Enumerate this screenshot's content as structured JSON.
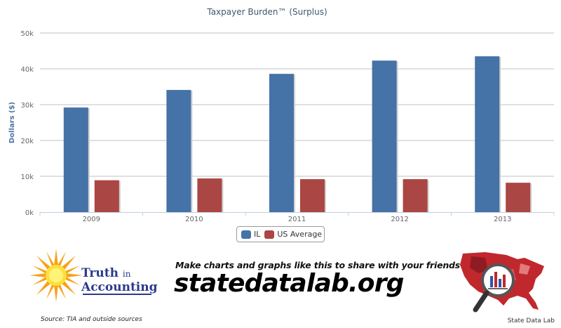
{
  "chart_data": {
    "type": "bar",
    "title": "Taxpayer Burden™ (Surplus)",
    "ylabel": "Dollars ($)",
    "xlabel": "",
    "categories": [
      "2009",
      "2010",
      "2011",
      "2012",
      "2013"
    ],
    "series": [
      {
        "name": "IL",
        "color": "#4572a7",
        "values": [
          29200,
          34100,
          38600,
          42300,
          43500
        ]
      },
      {
        "name": "US Average",
        "color": "#aa4643",
        "values": [
          8900,
          9400,
          9200,
          9200,
          8200
        ]
      }
    ],
    "ylim": [
      0,
      50000
    ],
    "yticks": [
      0,
      10000,
      20000,
      30000,
      40000,
      50000
    ],
    "ytick_labels": [
      "0k",
      "10k",
      "20k",
      "30k",
      "40k",
      "50k"
    ],
    "grid": true,
    "legend_position": "bottom-center"
  },
  "footer": {
    "tia_logo_line1": "Truth",
    "tia_logo_line1_small": "in",
    "tia_logo_line2": "Accounting",
    "tia_source": "Source: TIA and outside sources",
    "promo_line": "Make charts and graphs like this to share with your friends at",
    "promo_domain": "statedatalab.org",
    "sdl_label": "State Data Lab"
  }
}
